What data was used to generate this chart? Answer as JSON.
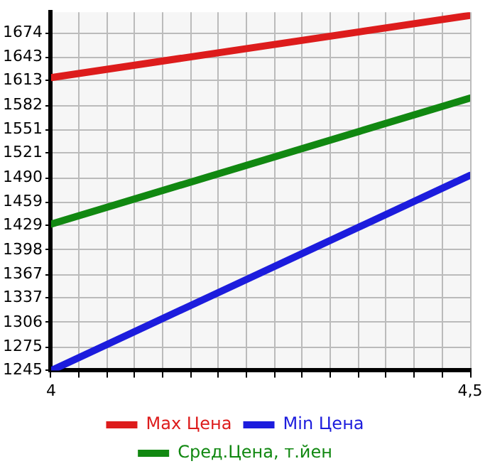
{
  "chart_data": {
    "type": "line",
    "x": [
      4,
      4.5
    ],
    "series": [
      {
        "name": "Max Цена",
        "color": "#dd1c1c",
        "values": [
          1617,
          1696
        ]
      },
      {
        "name": "Min Цена",
        "color": "#1c1cdd",
        "values": [
          1245,
          1493
        ]
      },
      {
        "name": "Сред.Цена, т.йен",
        "color": "#118811",
        "values": [
          1431,
          1591
        ]
      }
    ],
    "xlim": [
      4,
      4.5
    ],
    "xticks": [
      4,
      {
        "value": 4.0333,
        "label": null
      },
      {
        "value": 4.0667,
        "label": null
      },
      {
        "value": 4.1,
        "label": null
      },
      {
        "value": 4.1333,
        "label": null
      },
      {
        "value": 4.1667,
        "label": null
      },
      {
        "value": 4.2,
        "label": null
      },
      {
        "value": 4.2333,
        "label": null
      },
      {
        "value": 4.2667,
        "label": null
      },
      {
        "value": 4.3,
        "label": null
      },
      {
        "value": 4.3333,
        "label": null
      },
      {
        "value": 4.3667,
        "label": null
      },
      {
        "value": 4.4,
        "label": null
      },
      {
        "value": 4.4333,
        "label": null
      },
      {
        "value": 4.4667,
        "label": null
      },
      {
        "value": 4.5,
        "label": "4,5"
      }
    ],
    "ylim": [
      1245,
      1700
    ],
    "yticks": [
      1245,
      1275,
      1306,
      1337,
      1367,
      1398,
      1429,
      1459,
      1490,
      1521,
      1551,
      1582,
      1613,
      1643,
      1674
    ],
    "grid": true,
    "legend": "bottom",
    "marker": "none",
    "line_style": "solid"
  }
}
